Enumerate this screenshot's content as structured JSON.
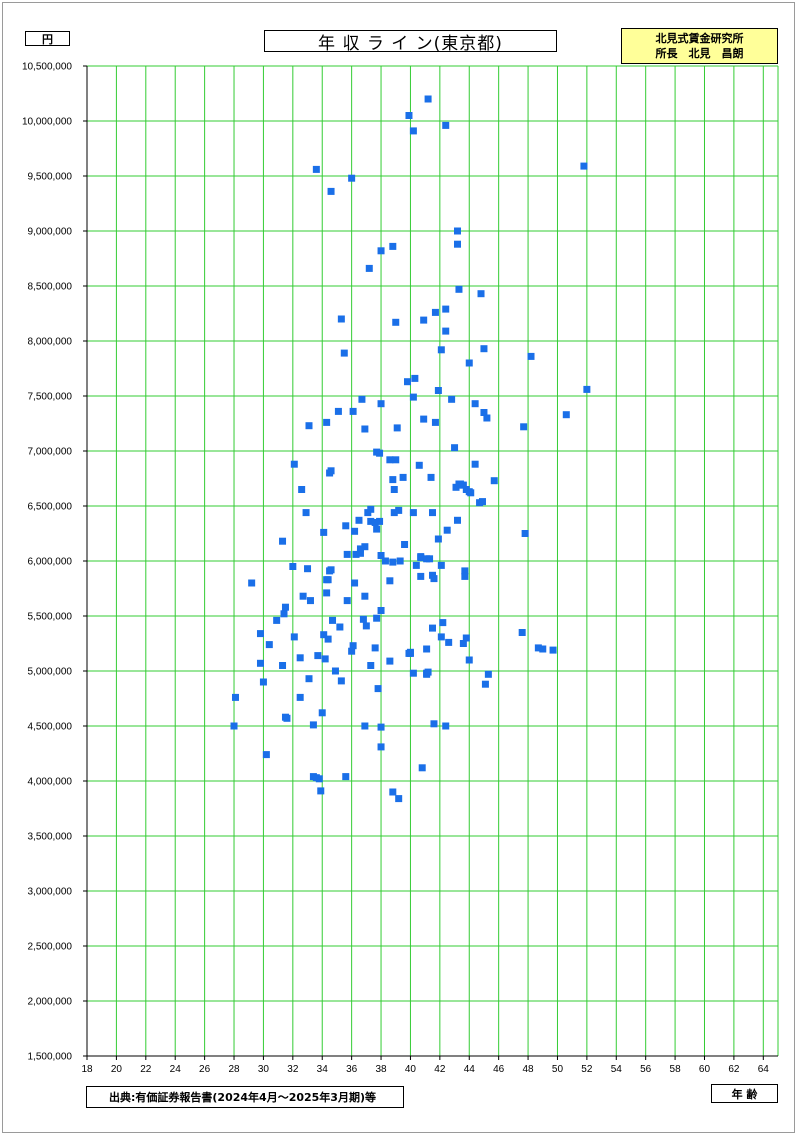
{
  "unit_label": "円",
  "title": "年 収 ラ イ ン(東京都)",
  "credit": {
    "line1": "北見式賃金研究所",
    "line2": "所長　北見　昌朗"
  },
  "source": "出典:有価証券報告書(2024年4月～2025年3月期)等",
  "x_axis_label": "年 齢",
  "colors": {
    "grid": "#33cc33",
    "marker": "#1a6fe8",
    "credit_bg": "#ffff99"
  },
  "chart_data": {
    "type": "scatter",
    "title": "年 収 ラ イ ン(東京都)",
    "xlabel": "年 齢",
    "ylabel": "円",
    "xlim": [
      18,
      65
    ],
    "ylim": [
      1500000,
      10500000
    ],
    "x_ticks": [
      18,
      20,
      22,
      24,
      26,
      28,
      30,
      32,
      34,
      36,
      38,
      40,
      42,
      44,
      46,
      48,
      50,
      52,
      54,
      56,
      58,
      60,
      62,
      64
    ],
    "y_ticks": [
      1500000,
      2000000,
      2500000,
      3000000,
      3500000,
      4000000,
      4500000,
      5000000,
      5500000,
      6000000,
      6500000,
      7000000,
      7500000,
      8000000,
      8500000,
      9000000,
      9500000,
      10000000,
      10500000
    ],
    "y_tick_labels": [
      "1,500,000",
      "2,000,000",
      "2,500,000",
      "3,000,000",
      "3,500,000",
      "4,000,000",
      "4,500,000",
      "5,000,000",
      "5,500,000",
      "6,000,000",
      "6,500,000",
      "7,000,000",
      "7,500,000",
      "8,000,000",
      "8,500,000",
      "9,000,000",
      "9,500,000",
      "10,000,000",
      "10,500,000"
    ],
    "grid": true,
    "points": [
      [
        28.0,
        4500000
      ],
      [
        28.1,
        4760000
      ],
      [
        29.2,
        5800000
      ],
      [
        29.8,
        5340000
      ],
      [
        29.8,
        5070000
      ],
      [
        30.0,
        4900000
      ],
      [
        30.2,
        4240000
      ],
      [
        30.4,
        5240000
      ],
      [
        30.9,
        5460000
      ],
      [
        31.3,
        6180000
      ],
      [
        31.3,
        5050000
      ],
      [
        31.4,
        5520000
      ],
      [
        31.5,
        5580000
      ],
      [
        31.5,
        4580000
      ],
      [
        31.6,
        4570000
      ],
      [
        32.0,
        5950000
      ],
      [
        32.1,
        6880000
      ],
      [
        32.1,
        5310000
      ],
      [
        32.5,
        5120000
      ],
      [
        32.5,
        4760000
      ],
      [
        32.6,
        6650000
      ],
      [
        32.7,
        5680000
      ],
      [
        32.9,
        6440000
      ],
      [
        33.0,
        5930000
      ],
      [
        33.1,
        7230000
      ],
      [
        33.1,
        4930000
      ],
      [
        33.2,
        5640000
      ],
      [
        33.4,
        4510000
      ],
      [
        33.4,
        4040000
      ],
      [
        33.6,
        4030000
      ],
      [
        33.6,
        9560000
      ],
      [
        33.7,
        5140000
      ],
      [
        33.8,
        4020000
      ],
      [
        33.9,
        3910000
      ],
      [
        34.0,
        4620000
      ],
      [
        34.1,
        6260000
      ],
      [
        34.1,
        5330000
      ],
      [
        34.2,
        5110000
      ],
      [
        34.3,
        7260000
      ],
      [
        34.3,
        5830000
      ],
      [
        34.3,
        5710000
      ],
      [
        34.4,
        5290000
      ],
      [
        34.4,
        5830000
      ],
      [
        34.5,
        6800000
      ],
      [
        34.5,
        5910000
      ],
      [
        34.6,
        9360000
      ],
      [
        34.6,
        6820000
      ],
      [
        34.6,
        5920000
      ],
      [
        34.7,
        5460000
      ],
      [
        34.9,
        5000000
      ],
      [
        35.1,
        7360000
      ],
      [
        35.2,
        5400000
      ],
      [
        35.3,
        8200000
      ],
      [
        35.3,
        4910000
      ],
      [
        35.5,
        7890000
      ],
      [
        35.6,
        4040000
      ],
      [
        35.6,
        6320000
      ],
      [
        35.7,
        6060000
      ],
      [
        35.7,
        5640000
      ],
      [
        36.0,
        9480000
      ],
      [
        36.0,
        5180000
      ],
      [
        36.1,
        7360000
      ],
      [
        36.1,
        5230000
      ],
      [
        36.2,
        6270000
      ],
      [
        36.2,
        5800000
      ],
      [
        36.3,
        6060000
      ],
      [
        36.5,
        6370000
      ],
      [
        36.6,
        6070000
      ],
      [
        36.6,
        6110000
      ],
      [
        36.7,
        7470000
      ],
      [
        36.8,
        5470000
      ],
      [
        36.9,
        7200000
      ],
      [
        36.9,
        6130000
      ],
      [
        36.9,
        5680000
      ],
      [
        36.9,
        4500000
      ],
      [
        37.0,
        5410000
      ],
      [
        37.1,
        6440000
      ],
      [
        37.2,
        8660000
      ],
      [
        37.3,
        6470000
      ],
      [
        37.3,
        6360000
      ],
      [
        37.3,
        5050000
      ],
      [
        37.6,
        6350000
      ],
      [
        37.6,
        5210000
      ],
      [
        37.7,
        6990000
      ],
      [
        37.7,
        6290000
      ],
      [
        37.7,
        5480000
      ],
      [
        37.8,
        4840000
      ],
      [
        37.9,
        6980000
      ],
      [
        37.9,
        6360000
      ],
      [
        38.0,
        8820000
      ],
      [
        38.0,
        7430000
      ],
      [
        38.0,
        6050000
      ],
      [
        38.0,
        5550000
      ],
      [
        38.0,
        4490000
      ],
      [
        38.0,
        4310000
      ],
      [
        38.3,
        6000000
      ],
      [
        38.6,
        6920000
      ],
      [
        38.6,
        5820000
      ],
      [
        38.6,
        5090000
      ],
      [
        38.8,
        8860000
      ],
      [
        38.8,
        6740000
      ],
      [
        38.8,
        5990000
      ],
      [
        38.8,
        3900000
      ],
      [
        38.9,
        6650000
      ],
      [
        38.9,
        6440000
      ],
      [
        39.0,
        6920000
      ],
      [
        39.0,
        8170000
      ],
      [
        39.1,
        7210000
      ],
      [
        39.2,
        6460000
      ],
      [
        39.2,
        3840000
      ],
      [
        39.3,
        6000000
      ],
      [
        39.5,
        6760000
      ],
      [
        39.6,
        6150000
      ],
      [
        39.8,
        7630000
      ],
      [
        39.9,
        10050000
      ],
      [
        39.9,
        5160000
      ],
      [
        40.0,
        5170000
      ],
      [
        40.0,
        5160000
      ],
      [
        40.2,
        9910000
      ],
      [
        40.2,
        7490000
      ],
      [
        40.2,
        6440000
      ],
      [
        40.2,
        4980000
      ],
      [
        40.3,
        7660000
      ],
      [
        40.4,
        5960000
      ],
      [
        40.6,
        6870000
      ],
      [
        40.7,
        6040000
      ],
      [
        40.7,
        6030000
      ],
      [
        40.7,
        5860000
      ],
      [
        40.8,
        4120000
      ],
      [
        40.9,
        8190000
      ],
      [
        40.9,
        7290000
      ],
      [
        41.1,
        6020000
      ],
      [
        41.1,
        5200000
      ],
      [
        41.1,
        4980000
      ],
      [
        41.1,
        4970000
      ],
      [
        41.2,
        10200000
      ],
      [
        41.2,
        4990000
      ],
      [
        41.3,
        6020000
      ],
      [
        41.4,
        6760000
      ],
      [
        41.5,
        6440000
      ],
      [
        41.5,
        5390000
      ],
      [
        41.5,
        5870000
      ],
      [
        41.6,
        5840000
      ],
      [
        41.6,
        4520000
      ],
      [
        41.7,
        8260000
      ],
      [
        41.7,
        7260000
      ],
      [
        41.9,
        7550000
      ],
      [
        41.9,
        6200000
      ],
      [
        42.1,
        7920000
      ],
      [
        42.1,
        5960000
      ],
      [
        42.1,
        5310000
      ],
      [
        42.2,
        5440000
      ],
      [
        42.4,
        9960000
      ],
      [
        42.4,
        8290000
      ],
      [
        42.4,
        8090000
      ],
      [
        42.4,
        4500000
      ],
      [
        42.5,
        6280000
      ],
      [
        42.6,
        5260000
      ],
      [
        42.8,
        7470000
      ],
      [
        43.0,
        7030000
      ],
      [
        43.1,
        6670000
      ],
      [
        43.2,
        9000000
      ],
      [
        43.2,
        8880000
      ],
      [
        43.2,
        6370000
      ],
      [
        43.3,
        8470000
      ],
      [
        43.3,
        6700000
      ],
      [
        43.4,
        6700000
      ],
      [
        43.5,
        6690000
      ],
      [
        43.6,
        6690000
      ],
      [
        43.6,
        5250000
      ],
      [
        43.7,
        5910000
      ],
      [
        43.7,
        5860000
      ],
      [
        43.8,
        6650000
      ],
      [
        43.8,
        5300000
      ],
      [
        44.0,
        6630000
      ],
      [
        44.0,
        5100000
      ],
      [
        44.0,
        7800000
      ],
      [
        44.1,
        6620000
      ],
      [
        44.4,
        7430000
      ],
      [
        44.4,
        6880000
      ],
      [
        44.7,
        6530000
      ],
      [
        44.8,
        8430000
      ],
      [
        44.9,
        6540000
      ],
      [
        45.0,
        7930000
      ],
      [
        45.0,
        7350000
      ],
      [
        45.1,
        4880000
      ],
      [
        45.2,
        7300000
      ],
      [
        45.3,
        4970000
      ],
      [
        45.7,
        6730000
      ],
      [
        47.6,
        5350000
      ],
      [
        47.7,
        7220000
      ],
      [
        47.8,
        6250000
      ],
      [
        48.2,
        7860000
      ],
      [
        48.7,
        5210000
      ],
      [
        49.0,
        5200000
      ],
      [
        49.7,
        5190000
      ],
      [
        50.6,
        7330000
      ],
      [
        51.8,
        9590000
      ],
      [
        52.0,
        7560000
      ]
    ]
  }
}
